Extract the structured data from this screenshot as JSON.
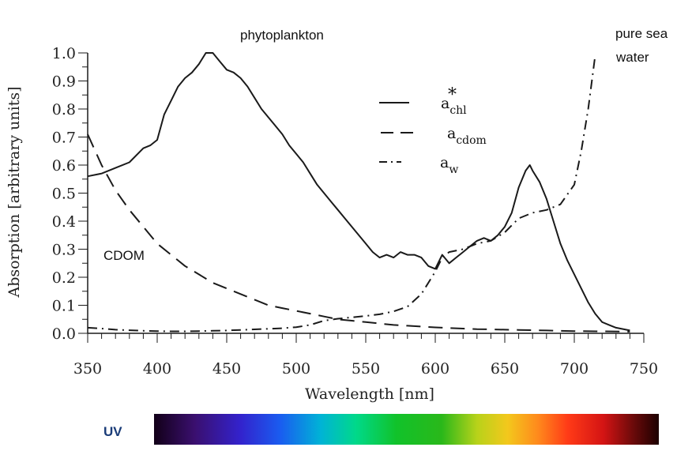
{
  "chart_data": {
    "type": "line",
    "xlabel": "Wavelength [nm]",
    "ylabel": "Absorption [arbitrary units]",
    "xlim": [
      350,
      750
    ],
    "ylim": [
      0,
      1.0
    ],
    "x_ticks": [
      350,
      400,
      450,
      500,
      550,
      600,
      650,
      700,
      750
    ],
    "y_ticks": [
      "0.0",
      "0.1",
      "0.2",
      "0.3",
      "0.4",
      "0.5",
      "0.6",
      "0.7",
      "0.8",
      "0.9",
      "1.0"
    ],
    "series": [
      {
        "name": "a*chl",
        "name_main": "a",
        "name_sup": "*",
        "name_sub": "chl",
        "style": "solid",
        "points": [
          [
            350,
            0.56
          ],
          [
            360,
            0.57
          ],
          [
            370,
            0.59
          ],
          [
            380,
            0.61
          ],
          [
            390,
            0.66
          ],
          [
            395,
            0.67
          ],
          [
            400,
            0.69
          ],
          [
            405,
            0.78
          ],
          [
            410,
            0.83
          ],
          [
            415,
            0.88
          ],
          [
            420,
            0.91
          ],
          [
            425,
            0.93
          ],
          [
            430,
            0.96
          ],
          [
            435,
            1.0
          ],
          [
            440,
            1.0
          ],
          [
            445,
            0.97
          ],
          [
            450,
            0.94
          ],
          [
            455,
            0.93
          ],
          [
            460,
            0.91
          ],
          [
            465,
            0.88
          ],
          [
            470,
            0.84
          ],
          [
            475,
            0.8
          ],
          [
            480,
            0.77
          ],
          [
            485,
            0.74
          ],
          [
            490,
            0.71
          ],
          [
            495,
            0.67
          ],
          [
            500,
            0.64
          ],
          [
            505,
            0.61
          ],
          [
            510,
            0.57
          ],
          [
            515,
            0.53
          ],
          [
            520,
            0.5
          ],
          [
            525,
            0.47
          ],
          [
            530,
            0.44
          ],
          [
            535,
            0.41
          ],
          [
            540,
            0.38
          ],
          [
            545,
            0.35
          ],
          [
            550,
            0.32
          ],
          [
            555,
            0.29
          ],
          [
            560,
            0.27
          ],
          [
            565,
            0.28
          ],
          [
            570,
            0.27
          ],
          [
            575,
            0.29
          ],
          [
            580,
            0.28
          ],
          [
            585,
            0.28
          ],
          [
            590,
            0.27
          ],
          [
            595,
            0.24
          ],
          [
            600,
            0.23
          ],
          [
            605,
            0.28
          ],
          [
            610,
            0.25
          ],
          [
            615,
            0.27
          ],
          [
            620,
            0.29
          ],
          [
            625,
            0.31
          ],
          [
            630,
            0.33
          ],
          [
            635,
            0.34
          ],
          [
            640,
            0.33
          ],
          [
            645,
            0.35
          ],
          [
            650,
            0.38
          ],
          [
            655,
            0.43
          ],
          [
            660,
            0.52
          ],
          [
            665,
            0.58
          ],
          [
            668,
            0.6
          ],
          [
            670,
            0.58
          ],
          [
            675,
            0.54
          ],
          [
            680,
            0.48
          ],
          [
            685,
            0.4
          ],
          [
            690,
            0.32
          ],
          [
            695,
            0.26
          ],
          [
            700,
            0.21
          ],
          [
            705,
            0.16
          ],
          [
            710,
            0.11
          ],
          [
            715,
            0.07
          ],
          [
            720,
            0.04
          ],
          [
            725,
            0.03
          ],
          [
            730,
            0.02
          ],
          [
            740,
            0.01
          ]
        ]
      },
      {
        "name": "acdom",
        "name_main": "a",
        "name_sup": "",
        "name_sub": "cdom",
        "style": "dashed",
        "points": [
          [
            350,
            0.71
          ],
          [
            360,
            0.6
          ],
          [
            370,
            0.51
          ],
          [
            380,
            0.44
          ],
          [
            390,
            0.38
          ],
          [
            400,
            0.32
          ],
          [
            410,
            0.28
          ],
          [
            420,
            0.24
          ],
          [
            430,
            0.21
          ],
          [
            440,
            0.18
          ],
          [
            450,
            0.16
          ],
          [
            460,
            0.14
          ],
          [
            470,
            0.12
          ],
          [
            480,
            0.1
          ],
          [
            490,
            0.09
          ],
          [
            500,
            0.08
          ],
          [
            510,
            0.07
          ],
          [
            520,
            0.06
          ],
          [
            530,
            0.05
          ],
          [
            540,
            0.045
          ],
          [
            550,
            0.04
          ],
          [
            560,
            0.035
          ],
          [
            570,
            0.03
          ],
          [
            580,
            0.027
          ],
          [
            590,
            0.024
          ],
          [
            600,
            0.021
          ],
          [
            610,
            0.019
          ],
          [
            620,
            0.017
          ],
          [
            630,
            0.015
          ],
          [
            640,
            0.014
          ],
          [
            650,
            0.013
          ],
          [
            660,
            0.012
          ],
          [
            670,
            0.011
          ],
          [
            680,
            0.01
          ],
          [
            690,
            0.009
          ],
          [
            700,
            0.008
          ],
          [
            720,
            0.007
          ],
          [
            740,
            0.006
          ]
        ]
      },
      {
        "name": "aw",
        "name_main": "a",
        "name_sup": "",
        "name_sub": "w",
        "style": "dashdot",
        "points": [
          [
            350,
            0.02
          ],
          [
            360,
            0.017
          ],
          [
            370,
            0.013
          ],
          [
            380,
            0.011
          ],
          [
            390,
            0.009
          ],
          [
            400,
            0.008
          ],
          [
            410,
            0.007
          ],
          [
            420,
            0.007
          ],
          [
            430,
            0.008
          ],
          [
            440,
            0.009
          ],
          [
            450,
            0.01
          ],
          [
            460,
            0.012
          ],
          [
            470,
            0.014
          ],
          [
            480,
            0.016
          ],
          [
            490,
            0.018
          ],
          [
            500,
            0.022
          ],
          [
            510,
            0.03
          ],
          [
            520,
            0.045
          ],
          [
            530,
            0.052
          ],
          [
            540,
            0.057
          ],
          [
            550,
            0.062
          ],
          [
            560,
            0.068
          ],
          [
            570,
            0.078
          ],
          [
            580,
            0.095
          ],
          [
            590,
            0.14
          ],
          [
            600,
            0.22
          ],
          [
            605,
            0.27
          ],
          [
            610,
            0.29
          ],
          [
            620,
            0.3
          ],
          [
            630,
            0.32
          ],
          [
            640,
            0.33
          ],
          [
            650,
            0.36
          ],
          [
            660,
            0.41
          ],
          [
            670,
            0.43
          ],
          [
            680,
            0.44
          ],
          [
            690,
            0.46
          ],
          [
            700,
            0.53
          ],
          [
            705,
            0.65
          ],
          [
            710,
            0.8
          ],
          [
            715,
            0.99
          ]
        ]
      }
    ],
    "annotations": [
      "phytoplankton",
      "pure sea",
      "water",
      "CDOM"
    ],
    "spectrum_label": "UV"
  },
  "colors": {
    "line": "#1a1a1a",
    "text": "#222222",
    "uv_label": "#1a3c78"
  }
}
